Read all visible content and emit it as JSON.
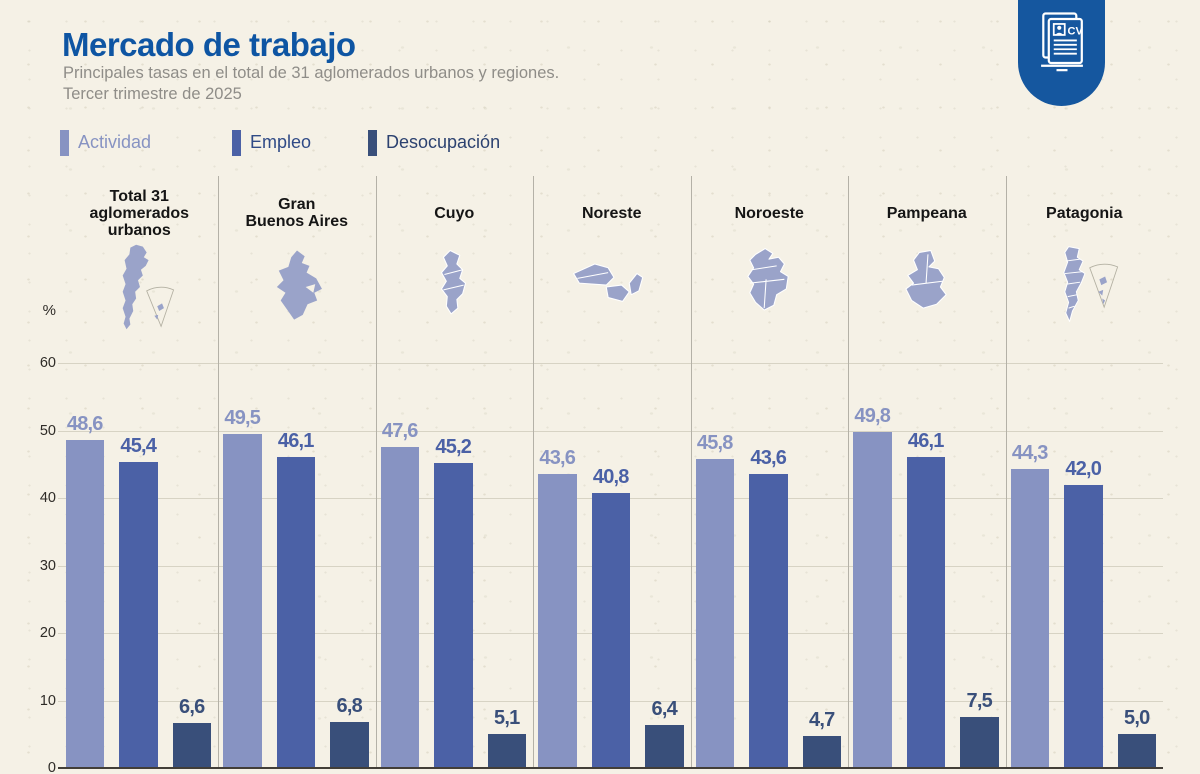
{
  "header": {
    "title": "Mercado de trabajo",
    "subtitle_line1": "Principales tasas en el total de 31 aglomerados urbanos y regiones.",
    "subtitle_line2": "Tercer trimestre de 2025"
  },
  "logo": {
    "label": "CV",
    "color": "#15579f"
  },
  "legend": {
    "items": [
      {
        "label": "Actividad",
        "color": "#8793c2",
        "text_color": "#8793c2"
      },
      {
        "label": "Empleo",
        "color": "#4b61a6",
        "text_color": "#2f4a86"
      },
      {
        "label": "Desocupación",
        "color": "#394f7a",
        "text_color": "#2c4270"
      }
    ]
  },
  "axis": {
    "unit_label": "%",
    "ticks": [
      60,
      50,
      40,
      30,
      20,
      10,
      0
    ]
  },
  "chart_data": {
    "type": "bar",
    "title": "Mercado de trabajo",
    "subtitle": "Principales tasas en el total de 31 aglomerados urbanos y regiones. Tercer trimestre de 2025",
    "ylabel": "%",
    "ylim": [
      0,
      60
    ],
    "grid": true,
    "legend_position": "top-left",
    "decimal_separator": ",",
    "categories": [
      "Total 31\naglomerados\nurbanos",
      "Gran\nBuenos Aires",
      "Cuyo",
      "Noreste",
      "Noroeste",
      "Pampeana",
      "Patagonia"
    ],
    "series": [
      {
        "name": "Actividad",
        "color": "#8793c2",
        "values": [
          48.6,
          49.5,
          47.6,
          43.6,
          45.8,
          49.8,
          44.3
        ],
        "labels": [
          "48,6",
          "49,5",
          "47,6",
          "43,6",
          "45,8",
          "49,8",
          "44,3"
        ]
      },
      {
        "name": "Empleo",
        "color": "#4b61a6",
        "values": [
          45.4,
          46.1,
          45.2,
          40.8,
          43.6,
          46.1,
          42.0
        ],
        "labels": [
          "45,4",
          "46,1",
          "45,2",
          "40,8",
          "43,6",
          "46,1",
          "42,0"
        ]
      },
      {
        "name": "Desocupación",
        "color": "#394f7a",
        "values": [
          6.6,
          6.8,
          5.1,
          6.4,
          4.7,
          7.5,
          5.0
        ],
        "labels": [
          "6,6",
          "6,8",
          "5,1",
          "6,4",
          "4,7",
          "7,5",
          "5,0"
        ]
      }
    ]
  }
}
